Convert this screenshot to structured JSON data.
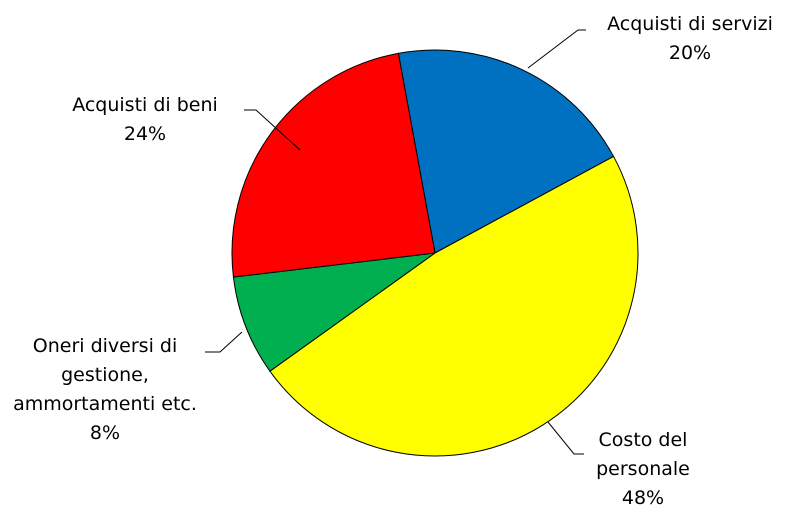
{
  "chart_data": {
    "type": "pie",
    "categories": [
      "Acquisti di servizi",
      "Costo del personale",
      "Oneri diversi di gestione, ammortamenti etc.",
      "Acquisti di beni"
    ],
    "values": [
      20,
      48,
      8,
      24
    ],
    "value_labels": [
      "20%",
      "48%",
      "8%",
      "24%"
    ],
    "colors": [
      "#0070c0",
      "#ffff00",
      "#00b050",
      "#ff0000"
    ]
  }
}
